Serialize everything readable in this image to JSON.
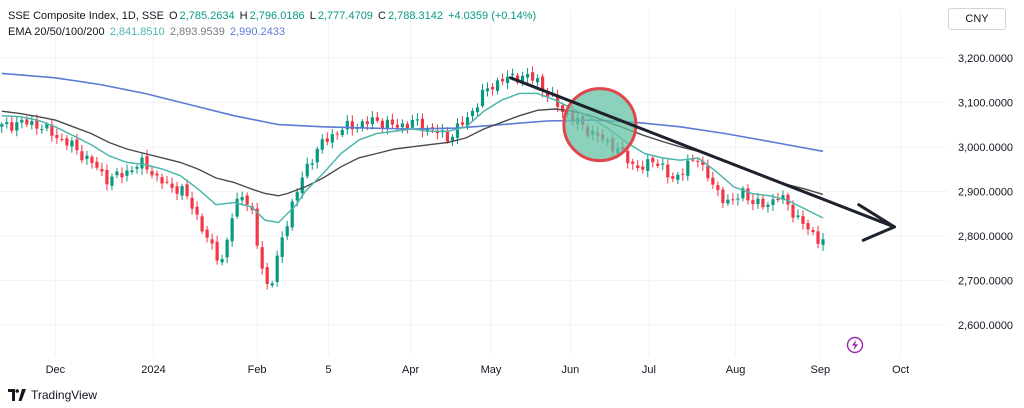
{
  "legend": {
    "title": "SSE Composite Index, 1D, SSE",
    "o_label": "O",
    "o_value": "2,785.2634",
    "h_label": "H",
    "h_value": "2,796.0186",
    "l_label": "L",
    "l_value": "2,777.4709",
    "c_label": "C",
    "c_value": "2,788.3142",
    "change": "+4.0359 (+0.14%)",
    "ema_label": "EMA 20/50/100/200",
    "ema20": "2,841.8510",
    "ema50": "2,893.9539",
    "ema100": "2,990.2433"
  },
  "currency": "CNY",
  "footer": {
    "brand": "TradingView"
  },
  "colors": {
    "up": "#089981",
    "down": "#f23645",
    "ema20": "#4db6ac",
    "ema50": "#787b86",
    "ema100": "#4a4a4a",
    "ema200": "#5b7bd5",
    "trendline": "#1e222d",
    "circle_fill": "#66c2a5",
    "circle_stroke": "#e0474c",
    "grid": "#f0f3fa",
    "flash": "#9c27b0"
  },
  "chart_data": {
    "type": "line",
    "title": "SSE Composite Index, 1D, SSE",
    "ylim": [
      2530,
      3240
    ],
    "y_ticks": [
      2600,
      2700,
      2800,
      2900,
      3000,
      3100,
      3200
    ],
    "y_tick_labels": [
      "2,600.0000",
      "2,700.0000",
      "2,800.0000",
      "2,900.0000",
      "3,000.0000",
      "3,100.0000",
      "3,200.0000"
    ],
    "x_ticks": [
      {
        "label": "Dec",
        "t": 0.0
      },
      {
        "label": "2024",
        "t": 0.11
      },
      {
        "label": "Feb",
        "t": 0.226
      },
      {
        "label": "5",
        "t": 0.306
      },
      {
        "label": "Apr",
        "t": 0.398
      },
      {
        "label": "May",
        "t": 0.488
      },
      {
        "label": "Jun",
        "t": 0.577
      },
      {
        "label": "Jul",
        "t": 0.665
      },
      {
        "label": "Aug",
        "t": 0.762
      },
      {
        "label": "Sep",
        "t": 0.857
      },
      {
        "label": "Oct",
        "t": 0.947
      }
    ],
    "x_range": [
      -0.062,
      1.0
    ],
    "price": [
      [
        -0.06,
        3045
      ],
      [
        -0.04,
        3055
      ],
      [
        -0.02,
        3050
      ],
      [
        0.0,
        3025
      ],
      [
        0.02,
        3000
      ],
      [
        0.04,
        2965
      ],
      [
        0.06,
        2925
      ],
      [
        0.08,
        2945
      ],
      [
        0.1,
        2965
      ],
      [
        0.115,
        2925
      ],
      [
        0.13,
        2910
      ],
      [
        0.14,
        2905
      ],
      [
        0.15,
        2880
      ],
      [
        0.16,
        2840
      ],
      [
        0.17,
        2790
      ],
      [
        0.18,
        2760
      ],
      [
        0.188,
        2745
      ],
      [
        0.2,
        2860
      ],
      [
        0.21,
        2900
      ],
      [
        0.22,
        2850
      ],
      [
        0.228,
        2760
      ],
      [
        0.236,
        2690
      ],
      [
        0.245,
        2705
      ],
      [
        0.252,
        2780
      ],
      [
        0.265,
        2870
      ],
      [
        0.275,
        2920
      ],
      [
        0.285,
        2970
      ],
      [
        0.3,
        3010
      ],
      [
        0.32,
        3040
      ],
      [
        0.34,
        3050
      ],
      [
        0.36,
        3060
      ],
      [
        0.38,
        3045
      ],
      [
        0.4,
        3055
      ],
      [
        0.42,
        3040
      ],
      [
        0.44,
        3020
      ],
      [
        0.46,
        3060
      ],
      [
        0.47,
        3090
      ],
      [
        0.48,
        3120
      ],
      [
        0.49,
        3140
      ],
      [
        0.5,
        3150
      ],
      [
        0.51,
        3155
      ],
      [
        0.52,
        3160
      ],
      [
        0.54,
        3150
      ],
      [
        0.55,
        3120
      ],
      [
        0.56,
        3100
      ],
      [
        0.57,
        3080
      ],
      [
        0.58,
        3060
      ],
      [
        0.59,
        3050
      ],
      [
        0.6,
        3030
      ],
      [
        0.61,
        3020
      ],
      [
        0.62,
        3010
      ],
      [
        0.64,
        2975
      ],
      [
        0.65,
        2955
      ],
      [
        0.66,
        2950
      ],
      [
        0.67,
        2975
      ],
      [
        0.68,
        2955
      ],
      [
        0.69,
        2920
      ],
      [
        0.7,
        2945
      ],
      [
        0.71,
        2960
      ],
      [
        0.72,
        2975
      ],
      [
        0.73,
        2940
      ],
      [
        0.74,
        2895
      ],
      [
        0.75,
        2885
      ],
      [
        0.76,
        2875
      ],
      [
        0.77,
        2900
      ],
      [
        0.78,
        2880
      ],
      [
        0.79,
        2865
      ],
      [
        0.8,
        2875
      ],
      [
        0.81,
        2890
      ],
      [
        0.82,
        2870
      ],
      [
        0.83,
        2845
      ],
      [
        0.84,
        2820
      ],
      [
        0.85,
        2800
      ],
      [
        0.86,
        2790
      ]
    ],
    "ema_fast": [
      [
        -0.06,
        3070
      ],
      [
        -0.04,
        3068
      ],
      [
        -0.02,
        3060
      ],
      [
        0.0,
        3045
      ],
      [
        0.02,
        3025
      ],
      [
        0.04,
        3005
      ],
      [
        0.06,
        2980
      ],
      [
        0.08,
        2965
      ],
      [
        0.1,
        2960
      ],
      [
        0.12,
        2950
      ],
      [
        0.14,
        2935
      ],
      [
        0.16,
        2905
      ],
      [
        0.18,
        2870
      ],
      [
        0.2,
        2875
      ],
      [
        0.22,
        2865
      ],
      [
        0.235,
        2835
      ],
      [
        0.25,
        2830
      ],
      [
        0.26,
        2850
      ],
      [
        0.27,
        2870
      ],
      [
        0.28,
        2900
      ],
      [
        0.3,
        2940
      ],
      [
        0.32,
        2985
      ],
      [
        0.34,
        3015
      ],
      [
        0.36,
        3030
      ],
      [
        0.38,
        3035
      ],
      [
        0.4,
        3040
      ],
      [
        0.42,
        3035
      ],
      [
        0.44,
        3035
      ],
      [
        0.46,
        3045
      ],
      [
        0.48,
        3080
      ],
      [
        0.5,
        3105
      ],
      [
        0.52,
        3120
      ],
      [
        0.54,
        3120
      ],
      [
        0.56,
        3105
      ],
      [
        0.58,
        3085
      ],
      [
        0.6,
        3065
      ],
      [
        0.62,
        3040
      ],
      [
        0.64,
        3010
      ],
      [
        0.66,
        2985
      ],
      [
        0.68,
        2975
      ],
      [
        0.7,
        2970
      ],
      [
        0.72,
        2975
      ],
      [
        0.74,
        2945
      ],
      [
        0.76,
        2910
      ],
      [
        0.78,
        2895
      ],
      [
        0.8,
        2890
      ],
      [
        0.82,
        2880
      ],
      [
        0.84,
        2860
      ],
      [
        0.86,
        2840
      ]
    ],
    "ema_mid": [
      [
        -0.06,
        3080
      ],
      [
        -0.04,
        3075
      ],
      [
        -0.02,
        3068
      ],
      [
        0.0,
        3060
      ],
      [
        0.02,
        3045
      ],
      [
        0.04,
        3030
      ],
      [
        0.06,
        3010
      ],
      [
        0.08,
        2995
      ],
      [
        0.1,
        2985
      ],
      [
        0.12,
        2975
      ],
      [
        0.14,
        2965
      ],
      [
        0.16,
        2950
      ],
      [
        0.18,
        2930
      ],
      [
        0.2,
        2920
      ],
      [
        0.22,
        2905
      ],
      [
        0.235,
        2895
      ],
      [
        0.25,
        2890
      ],
      [
        0.26,
        2895
      ],
      [
        0.28,
        2910
      ],
      [
        0.3,
        2930
      ],
      [
        0.32,
        2955
      ],
      [
        0.34,
        2975
      ],
      [
        0.36,
        2985
      ],
      [
        0.38,
        2995
      ],
      [
        0.4,
        3000
      ],
      [
        0.42,
        3005
      ],
      [
        0.44,
        3010
      ],
      [
        0.46,
        3020
      ],
      [
        0.48,
        3040
      ],
      [
        0.5,
        3055
      ],
      [
        0.52,
        3070
      ],
      [
        0.54,
        3082
      ],
      [
        0.56,
        3085
      ],
      [
        0.58,
        3080
      ],
      [
        0.6,
        3070
      ],
      [
        0.62,
        3055
      ],
      [
        0.64,
        3040
      ],
      [
        0.66,
        3025
      ],
      [
        0.68,
        3012
      ],
      [
        0.7,
        3000
      ],
      [
        0.72,
        2990
      ],
      [
        0.74,
        2975
      ],
      [
        0.76,
        2960
      ],
      [
        0.78,
        2945
      ],
      [
        0.8,
        2930
      ],
      [
        0.82,
        2915
      ],
      [
        0.84,
        2905
      ],
      [
        0.86,
        2893
      ]
    ],
    "ema_slow": [
      [
        -0.06,
        3165
      ],
      [
        0.0,
        3155
      ],
      [
        0.05,
        3140
      ],
      [
        0.1,
        3120
      ],
      [
        0.15,
        3095
      ],
      [
        0.2,
        3070
      ],
      [
        0.25,
        3050
      ],
      [
        0.3,
        3045
      ],
      [
        0.35,
        3042
      ],
      [
        0.4,
        3040
      ],
      [
        0.45,
        3042
      ],
      [
        0.5,
        3050
      ],
      [
        0.55,
        3058
      ],
      [
        0.6,
        3060
      ],
      [
        0.65,
        3055
      ],
      [
        0.7,
        3045
      ],
      [
        0.75,
        3030
      ],
      [
        0.8,
        3012
      ],
      [
        0.86,
        2990
      ]
    ],
    "annotations": {
      "trendline": [
        [
          0.51,
          3155
        ],
        [
          0.94,
          2820
        ]
      ],
      "arrowhead": [
        [
          0.9,
          2870
        ],
        [
          0.94,
          2820
        ],
        [
          0.905,
          2790
        ]
      ],
      "highlight_circle": {
        "t": 0.61,
        "v": 3050
      }
    }
  }
}
